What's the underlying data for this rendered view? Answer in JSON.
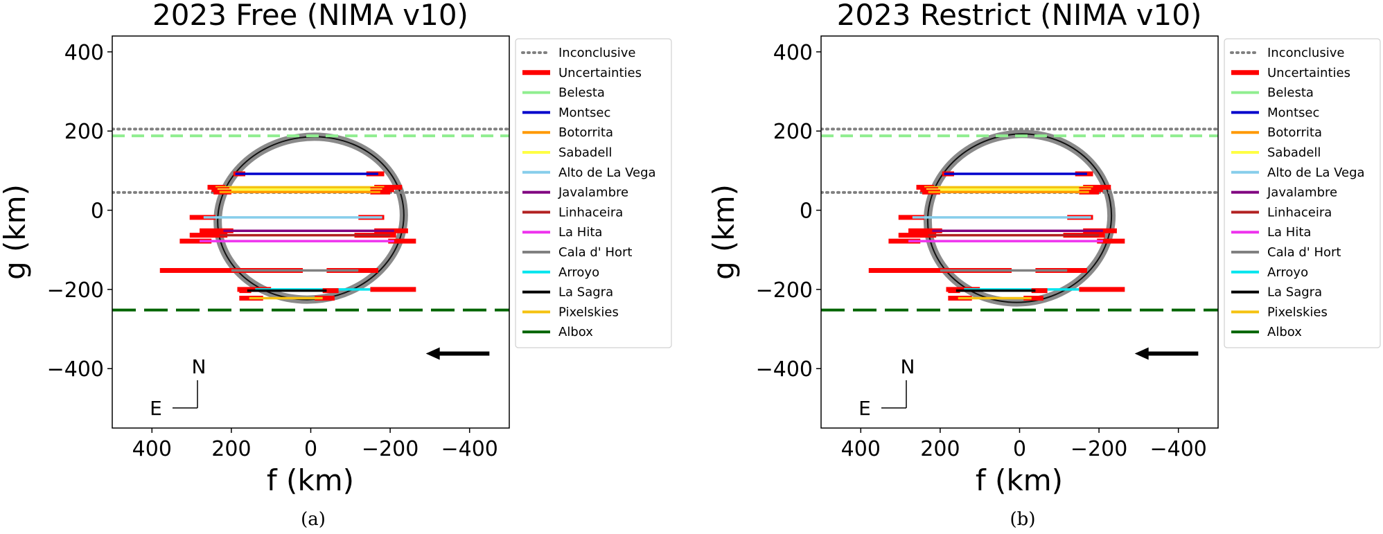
{
  "chart_data": [
    {
      "panel_label": "(a)",
      "type": "line",
      "title": "2023 Free (NIMA v10)",
      "xlabel": "f (km)",
      "ylabel": "g (km)",
      "xlim": [
        500,
        -500
      ],
      "ylim": [
        -550,
        440
      ],
      "xticks": [
        400,
        200,
        0,
        -200,
        -400
      ],
      "xtick_labels": [
        "400",
        "200",
        "0",
        "−200",
        "−400"
      ],
      "yticks": [
        400,
        200,
        0,
        -200,
        -400
      ],
      "ytick_labels": [
        "400",
        "200",
        "0",
        "−200",
        "−400"
      ],
      "grid": false,
      "legend_position": "outside-right",
      "ellipse": {
        "center_f": 0,
        "center_g": -20,
        "radius_f": 235,
        "radius_g": 205,
        "rotation_deg": -8
      },
      "inconclusive": [
        205,
        45
      ],
      "chords": [
        {
          "name": "Montsec",
          "g": 92,
          "f1": 190,
          "f2": -170,
          "color": "#0000cc",
          "unc": [
            [
              195,
              165
            ],
            [
              -140,
              -185
            ]
          ]
        },
        {
          "name": "Pixelskies",
          "g": 58,
          "f1": 240,
          "f2": -185,
          "color": "#f5c211",
          "unc": [
            [
              260,
              215
            ],
            [
              -160,
              -230
            ]
          ]
        },
        {
          "name": "Sabadell",
          "g": 52,
          "f1": 235,
          "f2": -180,
          "color": "#ffff44",
          "unc": [
            [
              250,
              205
            ],
            [
              -150,
              -210
            ]
          ]
        },
        {
          "name": "Botorrita",
          "g": 46,
          "f1": 230,
          "f2": -175,
          "color": "#ff9900",
          "unc": [
            [
              245,
              200
            ],
            [
              -150,
              -200
            ]
          ]
        },
        {
          "name": "Alto de La Vega",
          "g": -18,
          "f1": 270,
          "f2": -180,
          "color": "#87ceeb",
          "unc": [
            [
              305,
              240
            ],
            [
              -120,
              -185
            ]
          ]
        },
        {
          "name": "Javalambre",
          "g": -52,
          "f1": 220,
          "f2": -210,
          "color": "#800080",
          "unc": [
            [
              280,
              195
            ],
            [
              -160,
              -245
            ]
          ]
        },
        {
          "name": "Linhaceira",
          "g": -63,
          "f1": 230,
          "f2": -200,
          "color": "#b22222",
          "unc": [
            [
              305,
              210
            ],
            [
              -110,
              -215
            ]
          ]
        },
        {
          "name": "La Hita",
          "g": -78,
          "f1": 280,
          "f2": -210,
          "color": "#ee33ee",
          "unc": [
            [
              330,
              250
            ],
            [
              -195,
              -265
            ]
          ]
        },
        {
          "name": "Cala d' Hort",
          "g": -152,
          "f1": 200,
          "f2": -120,
          "color": "#808080",
          "unc": [
            [
              380,
              20
            ],
            [
              -40,
              -170
            ]
          ]
        },
        {
          "name": "Arroyo",
          "g": -200,
          "f1": 140,
          "f2": -150,
          "color": "#00e5ee",
          "unc": [
            [
              185,
              100
            ],
            [
              -150,
              -265
            ]
          ]
        },
        {
          "name": "La Sagra",
          "g": -203,
          "f1": 160,
          "f2": -40,
          "color": "#000000",
          "unc": [
            [
              180,
              150
            ],
            [
              -30,
              -70
            ]
          ]
        },
        {
          "name": "Pixelskies",
          "g": -222,
          "f1": 155,
          "f2": -30,
          "color": "#f5c211",
          "unc": [
            [
              180,
              120
            ],
            [
              -10,
              -60
            ]
          ]
        }
      ],
      "limits": [
        {
          "name": "Belesta",
          "g": 188,
          "color": "#90ee90",
          "style": "dashed"
        },
        {
          "name": "Albox",
          "g": -252,
          "color": "#006400",
          "style": "longdash"
        }
      ],
      "direction_arrow": {
        "from_f": -450,
        "to_f": -290,
        "g": -362
      },
      "compass": {
        "north": "N",
        "east": "E"
      },
      "legend": [
        {
          "label": "Inconclusive",
          "color": "#808080",
          "style": "dotted"
        },
        {
          "label": "Uncertainties",
          "color": "#ff0000",
          "style": "thick"
        },
        {
          "label": "Belesta",
          "color": "#90ee90",
          "style": "solid"
        },
        {
          "label": "Montsec",
          "color": "#0000cc",
          "style": "solid"
        },
        {
          "label": "Botorrita",
          "color": "#ff9900",
          "style": "solid"
        },
        {
          "label": "Sabadell",
          "color": "#ffff44",
          "style": "solid"
        },
        {
          "label": "Alto de La Vega",
          "color": "#87ceeb",
          "style": "solid"
        },
        {
          "label": "Javalambre",
          "color": "#800080",
          "style": "solid"
        },
        {
          "label": "Linhaceira",
          "color": "#b22222",
          "style": "solid"
        },
        {
          "label": "La Hita",
          "color": "#ee33ee",
          "style": "solid"
        },
        {
          "label": "Cala d' Hort",
          "color": "#808080",
          "style": "solid"
        },
        {
          "label": "Arroyo",
          "color": "#00e5ee",
          "style": "solid"
        },
        {
          "label": "La Sagra",
          "color": "#000000",
          "style": "solid"
        },
        {
          "label": "Pixelskies",
          "color": "#f5c211",
          "style": "solid"
        },
        {
          "label": "Albox",
          "color": "#006400",
          "style": "solid"
        }
      ]
    },
    {
      "panel_label": "(b)",
      "type": "line",
      "title": "2023 Restrict (NIMA v10)",
      "xlabel": "f (km)",
      "ylabel": "g (km)",
      "xlim": [
        500,
        -500
      ],
      "ylim": [
        -550,
        440
      ],
      "xticks": [
        400,
        200,
        0,
        -200,
        -400
      ],
      "xtick_labels": [
        "400",
        "200",
        "0",
        "−200",
        "−400"
      ],
      "yticks": [
        400,
        200,
        0,
        -200,
        -400
      ],
      "ytick_labels": [
        "400",
        "200",
        "0",
        "−200",
        "−400"
      ],
      "grid": false,
      "legend_position": "outside-right",
      "ellipse": {
        "center_f": 0,
        "center_g": -20,
        "radius_f": 232,
        "radius_g": 212,
        "rotation_deg": -10
      },
      "inconclusive": [
        205,
        45
      ],
      "chords": [
        {
          "name": "Montsec",
          "g": 92,
          "f1": 190,
          "f2": -170,
          "color": "#0000cc",
          "unc": [
            [
              195,
              165
            ],
            [
              -140,
              -185
            ]
          ]
        },
        {
          "name": "Pixelskies",
          "g": 58,
          "f1": 240,
          "f2": -185,
          "color": "#f5c211",
          "unc": [
            [
              260,
              215
            ],
            [
              -160,
              -230
            ]
          ]
        },
        {
          "name": "Sabadell",
          "g": 52,
          "f1": 235,
          "f2": -180,
          "color": "#ffff44",
          "unc": [
            [
              250,
              205
            ],
            [
              -150,
              -210
            ]
          ]
        },
        {
          "name": "Botorrita",
          "g": 46,
          "f1": 230,
          "f2": -175,
          "color": "#ff9900",
          "unc": [
            [
              245,
              200
            ],
            [
              -150,
              -200
            ]
          ]
        },
        {
          "name": "Alto de La Vega",
          "g": -18,
          "f1": 270,
          "f2": -180,
          "color": "#87ceeb",
          "unc": [
            [
              305,
              240
            ],
            [
              -120,
              -185
            ]
          ]
        },
        {
          "name": "Javalambre",
          "g": -52,
          "f1": 220,
          "f2": -210,
          "color": "#800080",
          "unc": [
            [
              280,
              195
            ],
            [
              -160,
              -245
            ]
          ]
        },
        {
          "name": "Linhaceira",
          "g": -63,
          "f1": 230,
          "f2": -200,
          "color": "#b22222",
          "unc": [
            [
              305,
              210
            ],
            [
              -110,
              -215
            ]
          ]
        },
        {
          "name": "La Hita",
          "g": -78,
          "f1": 280,
          "f2": -210,
          "color": "#ee33ee",
          "unc": [
            [
              330,
              250
            ],
            [
              -195,
              -265
            ]
          ]
        },
        {
          "name": "Cala d' Hort",
          "g": -152,
          "f1": 200,
          "f2": -120,
          "color": "#808080",
          "unc": [
            [
              380,
              20
            ],
            [
              -40,
              -170
            ]
          ]
        },
        {
          "name": "Arroyo",
          "g": -200,
          "f1": 140,
          "f2": -150,
          "color": "#00e5ee",
          "unc": [
            [
              185,
              100
            ],
            [
              -150,
              -265
            ]
          ]
        },
        {
          "name": "La Sagra",
          "g": -203,
          "f1": 160,
          "f2": -40,
          "color": "#000000",
          "unc": [
            [
              180,
              150
            ],
            [
              -30,
              -70
            ]
          ]
        },
        {
          "name": "Pixelskies",
          "g": -222,
          "f1": 155,
          "f2": -30,
          "color": "#f5c211",
          "unc": [
            [
              180,
              120
            ],
            [
              -10,
              -60
            ]
          ]
        }
      ],
      "limits": [
        {
          "name": "Belesta",
          "g": 188,
          "color": "#90ee90",
          "style": "dashed"
        },
        {
          "name": "Albox",
          "g": -252,
          "color": "#006400",
          "style": "longdash"
        }
      ],
      "direction_arrow": {
        "from_f": -450,
        "to_f": -290,
        "g": -362
      },
      "compass": {
        "north": "N",
        "east": "E"
      },
      "legend": [
        {
          "label": "Inconclusive",
          "color": "#808080",
          "style": "dotted"
        },
        {
          "label": "Uncertainties",
          "color": "#ff0000",
          "style": "thick"
        },
        {
          "label": "Belesta",
          "color": "#90ee90",
          "style": "solid"
        },
        {
          "label": "Montsec",
          "color": "#0000cc",
          "style": "solid"
        },
        {
          "label": "Botorrita",
          "color": "#ff9900",
          "style": "solid"
        },
        {
          "label": "Sabadell",
          "color": "#ffff44",
          "style": "solid"
        },
        {
          "label": "Alto de La Vega",
          "color": "#87ceeb",
          "style": "solid"
        },
        {
          "label": "Javalambre",
          "color": "#800080",
          "style": "solid"
        },
        {
          "label": "Linhaceira",
          "color": "#b22222",
          "style": "solid"
        },
        {
          "label": "La Hita",
          "color": "#ee33ee",
          "style": "solid"
        },
        {
          "label": "Cala d' Hort",
          "color": "#808080",
          "style": "solid"
        },
        {
          "label": "Arroyo",
          "color": "#00e5ee",
          "style": "solid"
        },
        {
          "label": "La Sagra",
          "color": "#000000",
          "style": "solid"
        },
        {
          "label": "Pixelskies",
          "color": "#f5c211",
          "style": "solid"
        },
        {
          "label": "Albox",
          "color": "#006400",
          "style": "solid"
        }
      ]
    }
  ]
}
